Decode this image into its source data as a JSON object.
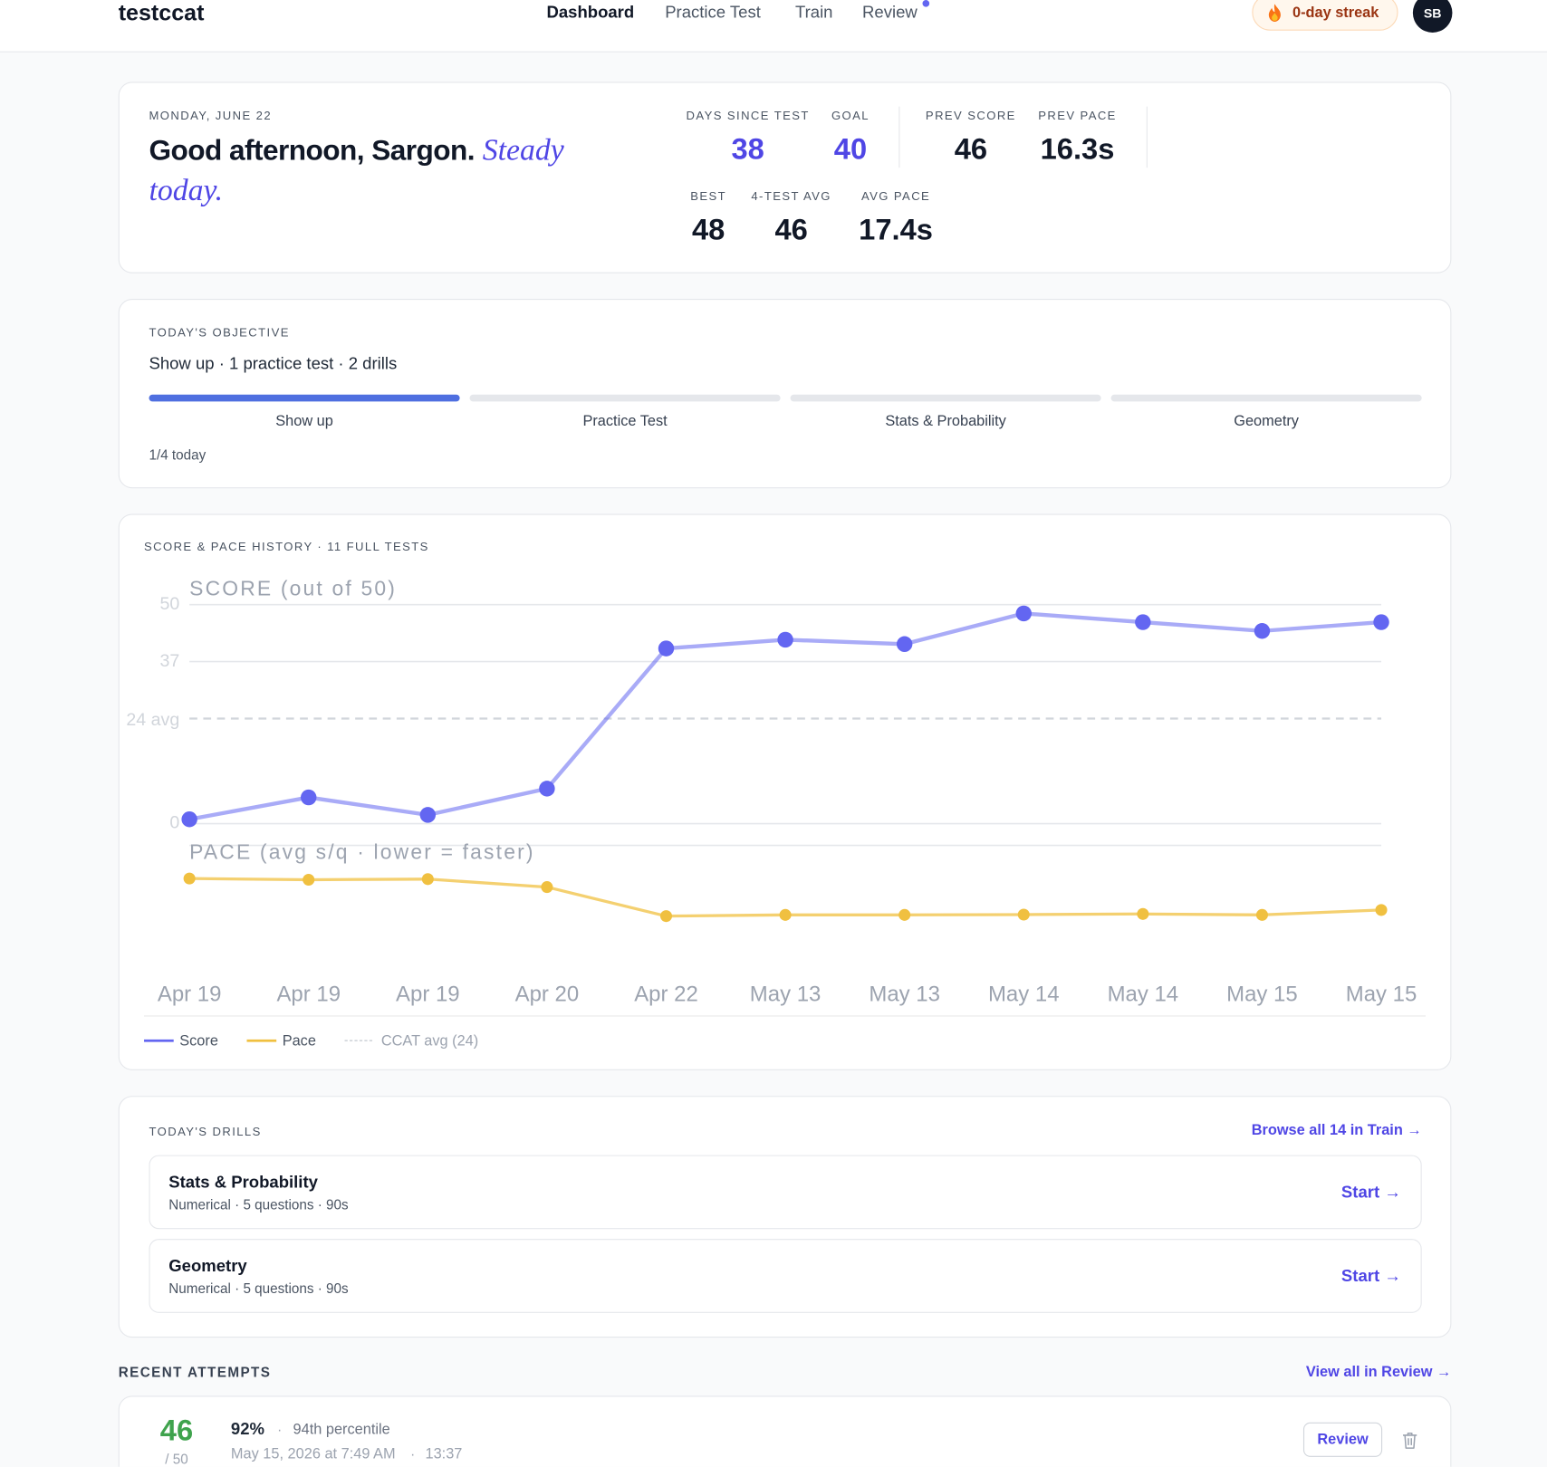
{
  "nav": {
    "brand": "testccat",
    "links": [
      "Dashboard",
      "Practice Test",
      "Train",
      "Review"
    ],
    "streak": "0-day streak",
    "avatar": "SB"
  },
  "header": {
    "date": "MONDAY, JUNE 22",
    "greeting": "Good afternoon, Sargon.",
    "mood": "Steady today.",
    "stats": [
      {
        "label": "DAYS SINCE TEST",
        "value": "38"
      },
      {
        "label": "GOAL",
        "value": "40"
      },
      {
        "label": "PREV SCORE",
        "value": "46"
      },
      {
        "label": "PREV PACE",
        "value": "16.3s"
      },
      {
        "label": "BEST",
        "value": "48"
      },
      {
        "label": "4-TEST AVG",
        "value": "46"
      },
      {
        "label": "AVG PACE",
        "value": "17.4s"
      }
    ]
  },
  "objective": {
    "title": "TODAY'S OBJECTIVE",
    "summary": "Show up · 1 practice test · 2 drills",
    "steps": [
      "Show up",
      "Practice Test",
      "Stats & Probability",
      "Geometry"
    ],
    "done": [
      true,
      false,
      false,
      false
    ],
    "progress": "1/4 today"
  },
  "chart_data": {
    "type": "line",
    "title": "SCORE & PACE HISTORY · 11 FULL TESTS",
    "score_label": "SCORE (out of 50)",
    "pace_label": "PACE (avg s/q · lower = faster)",
    "categories": [
      "Apr 19",
      "Apr 19",
      "Apr 19",
      "Apr 20",
      "Apr 22",
      "May 13",
      "May 13",
      "May 14",
      "May 14",
      "May 15",
      "May 15"
    ],
    "series": [
      {
        "name": "Score",
        "color": "#6366f1",
        "values": [
          1,
          6,
          2,
          8,
          40,
          42,
          41,
          48,
          46,
          44,
          46
        ]
      },
      {
        "name": "Pace",
        "color": "#f0c040",
        "axis": "y2",
        "values": [
          6.0,
          6.4,
          6.2,
          8.8,
          18.3,
          17.9,
          17.9,
          17.8,
          17.6,
          17.9,
          16.3
        ]
      }
    ],
    "ylim": [
      0,
      50
    ],
    "yticks": [
      0,
      37,
      50
    ],
    "y2lim": [
      30,
      0
    ],
    "avg_line": {
      "value": 24,
      "label": "24 avg"
    },
    "avg_legend": "CCAT avg (24)",
    "grid": true
  },
  "drills": {
    "title": "TODAY'S DRILLS",
    "link": "Browse all 14 in Train →",
    "items": [
      {
        "name": "Stats & Probability",
        "meta": "Numerical · 5 questions · 90s",
        "action": "Start →"
      },
      {
        "name": "Geometry",
        "meta": "Numerical · 5 questions · 90s",
        "action": "Start →"
      }
    ]
  },
  "recent": {
    "title": "RECENT ATTEMPTS",
    "link": "View all in Review →",
    "separator": "·",
    "attempts": [
      {
        "score": "46",
        "total": "/ 50",
        "percent": "92%",
        "percentile": "94th percentile",
        "date": "May 15, 2026 at 7:49 AM",
        "time": "13:37",
        "action": "Review"
      }
    ]
  }
}
